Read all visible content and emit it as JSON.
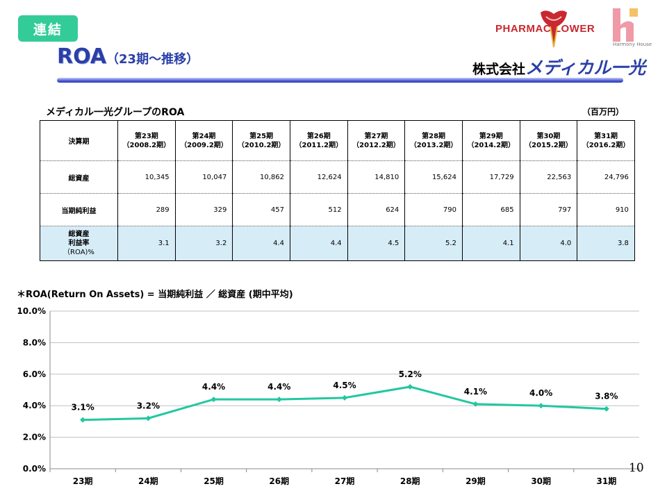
{
  "header": {
    "badge": "連結",
    "title_main": "ROA",
    "title_sub": "（23期～推移）",
    "company_prefix": "株式会社",
    "company_brand": "メディカル一光",
    "logo_flower_text": "PHARMAC LOWER",
    "logo_h_text": "Harmony House"
  },
  "table": {
    "caption": "メディカル一光グループのROA",
    "unit": "（百万円）",
    "header_label": "決算期",
    "periods": [
      {
        "name": "第23期",
        "date": "（2008.2期）"
      },
      {
        "name": "第24期",
        "date": "（2009.2期）"
      },
      {
        "name": "第25期",
        "date": "（2010.2期）"
      },
      {
        "name": "第26期",
        "date": "（2011.2期）"
      },
      {
        "name": "第27期",
        "date": "（2012.2期）"
      },
      {
        "name": "第28期",
        "date": "（2013.2期）"
      },
      {
        "name": "第29期",
        "date": "（2014.2期）"
      },
      {
        "name": "第30期",
        "date": "（2015.2期）"
      },
      {
        "name": "第31期",
        "date": "（2016.2期）"
      }
    ],
    "rows": [
      {
        "label_lines": [
          "総資産"
        ],
        "values": [
          "10,345",
          "10,047",
          "10,862",
          "12,624",
          "14,810",
          "15,624",
          "17,729",
          "22,563",
          "24,796"
        ]
      },
      {
        "label_lines": [
          "当期純利益"
        ],
        "values": [
          "289",
          "329",
          "457",
          "512",
          "624",
          "790",
          "685",
          "797",
          "910"
        ]
      },
      {
        "label_lines": [
          "総資産",
          "利益率",
          "（ROA)%"
        ],
        "values": [
          "3.1",
          "3.2",
          "4.4",
          "4.4",
          "4.5",
          "5.2",
          "4.1",
          "4.0",
          "3.8"
        ]
      }
    ]
  },
  "formula": "＊ROA(Return On Assets) = 当期純利益 ／ 総資産 (期中平均)",
  "chart_data": {
    "type": "line",
    "title": "",
    "xlabel": "",
    "ylabel": "",
    "categories": [
      "23期",
      "24期",
      "25期",
      "26期",
      "27期",
      "28期",
      "29期",
      "30期",
      "31期"
    ],
    "series": [
      {
        "name": "ROA",
        "values": [
          3.1,
          3.2,
          4.4,
          4.4,
          4.5,
          5.2,
          4.1,
          4.0,
          3.8
        ]
      }
    ],
    "data_labels": [
      "3.1%",
      "3.2%",
      "4.4%",
      "4.4%",
      "4.5%",
      "5.2%",
      "4.1%",
      "4.0%",
      "3.8%"
    ],
    "ylim": [
      0,
      10
    ],
    "yticks": [
      0,
      2,
      4,
      6,
      8,
      10
    ],
    "ytick_labels": [
      "0.0%",
      "2.0%",
      "4.0%",
      "6.0%",
      "8.0%",
      "10.0%"
    ],
    "grid": true,
    "line_color": "#22c7a0"
  },
  "page_number": "10"
}
